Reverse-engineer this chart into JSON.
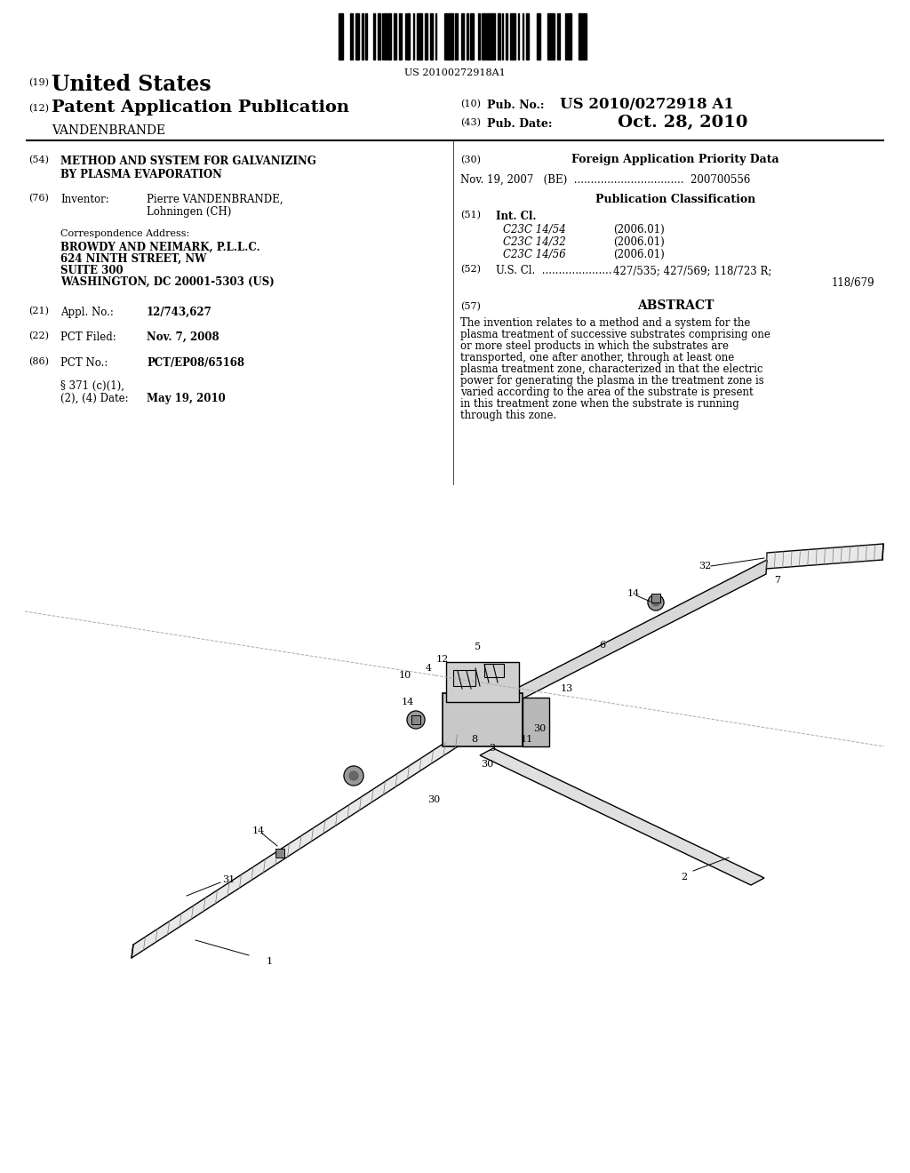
{
  "bg_color": "#ffffff",
  "barcode_text": "US 20100272918A1",
  "header": {
    "line19_num": "(19)",
    "line19_text": "United States",
    "line12_num": "(12)",
    "line12_text": "Patent Application Publication",
    "inventor_name": "VANDENBRANDE",
    "pub_no_num": "(10)",
    "pub_no_label": "Pub. No.:",
    "pub_no_value": "US 2010/0272918 A1",
    "pub_date_num": "(43)",
    "pub_date_label": "Pub. Date:",
    "pub_date_value": "Oct. 28, 2010"
  },
  "left_col": {
    "title_num": "(54)",
    "title_line1": "METHOD AND SYSTEM FOR GALVANIZING",
    "title_line2": "BY PLASMA EVAPORATION",
    "inventor_num": "(76)",
    "inventor_label": "Inventor:",
    "inventor_line1": "Pierre VANDENBRANDE,",
    "inventor_line2": "Lohningen (CH)",
    "corr_label": "Correspondence Address:",
    "corr_lines": [
      "BROWDY AND NEIMARK, P.L.L.C.",
      "624 NINTH STREET, NW",
      "SUITE 300",
      "WASHINGTON, DC 20001-5303 (US)"
    ],
    "appl_num": "(21)",
    "appl_label": "Appl. No.:",
    "appl_value": "12/743,627",
    "pct_filed_num": "(22)",
    "pct_filed_label": "PCT Filed:",
    "pct_filed_value": "Nov. 7, 2008",
    "pct_no_num": "(86)",
    "pct_no_label": "PCT No.:",
    "pct_no_value": "PCT/EP08/65168",
    "s371_line1": "§ 371 (c)(1),",
    "s371_line2": "(2), (4) Date:",
    "s371_value": "May 19, 2010"
  },
  "right_col": {
    "foreign_num": "(30)",
    "foreign_label": "Foreign Application Priority Data",
    "foreign_entry": "Nov. 19, 2007   (BE)  .................................  200700556",
    "pub_class_label": "Publication Classification",
    "int_cl_num": "(51)",
    "int_cl_label": "Int. Cl.",
    "classes": [
      [
        "C23C 14/54",
        "(2006.01)"
      ],
      [
        "C23C 14/32",
        "(2006.01)"
      ],
      [
        "C23C 14/56",
        "(2006.01)"
      ]
    ],
    "us_cl_num": "(52)",
    "us_cl_label": "U.S. Cl.",
    "us_cl_dots": ".....................",
    "us_cl_value1": "427/535; 427/569; 118/723 R;",
    "us_cl_value2": "118/679",
    "abstract_num": "(57)",
    "abstract_label": "ABSTRACT",
    "abstract_text": "The invention relates to a method and a system for the plasma treatment of successive substrates comprising one or more steel products in which the substrates are transported, one after another, through at least one plasma treatment zone, characterized in that the electric power for generating the plasma in the treatment zone is varied according to the area of the substrate is present in this treatment zone when the substrate is running through this zone."
  }
}
